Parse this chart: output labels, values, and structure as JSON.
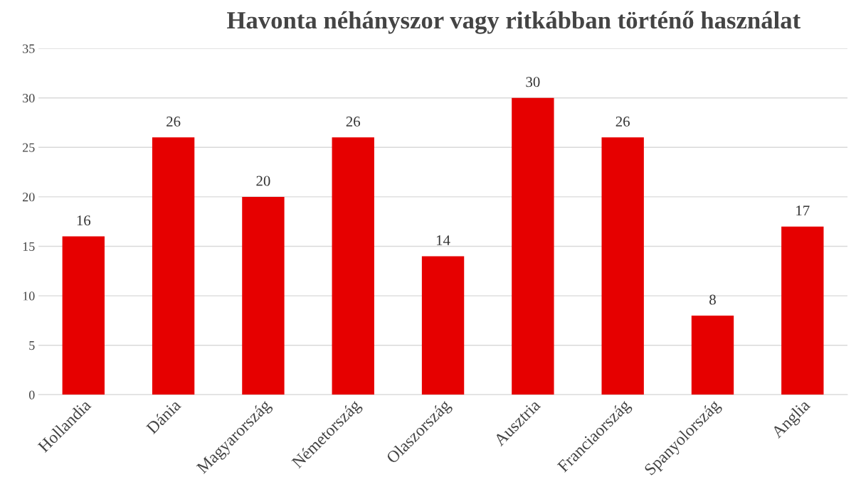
{
  "chart_data": {
    "type": "bar",
    "title": "Havonta néhányszor vagy ritkábban történő használat",
    "categories": [
      "Hollandia",
      "Dánia",
      "Magyarország",
      "Németország",
      "Olaszország",
      "Ausztria",
      "Franciaország",
      "Spanyolország",
      "Anglia"
    ],
    "values": [
      16,
      26,
      20,
      26,
      14,
      30,
      26,
      8,
      17
    ],
    "color": "#e60000",
    "ylim": [
      0,
      35
    ],
    "yticks": [
      0,
      5,
      10,
      15,
      20,
      25,
      30,
      35
    ],
    "grid": "y",
    "data_labels": true
  }
}
